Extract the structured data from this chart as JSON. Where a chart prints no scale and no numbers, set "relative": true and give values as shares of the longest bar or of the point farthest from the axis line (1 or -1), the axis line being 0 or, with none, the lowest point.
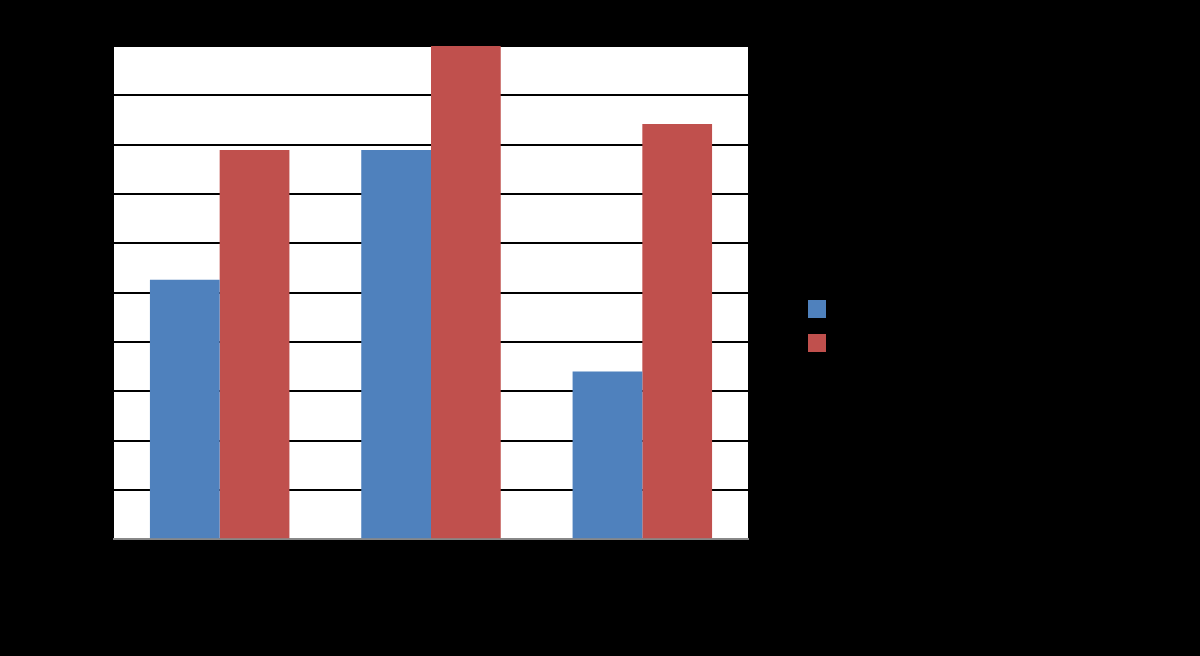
{
  "chart_data": {
    "type": "bar",
    "relative": true,
    "categories": [
      null,
      null,
      null
    ],
    "series": [
      {
        "color": "#4f81bd",
        "values": [
          0.526,
          0.789,
          0.34
        ]
      },
      {
        "color": "#c0504d",
        "values": [
          0.789,
          1,
          0.842
        ]
      }
    ],
    "grid": "y"
  }
}
